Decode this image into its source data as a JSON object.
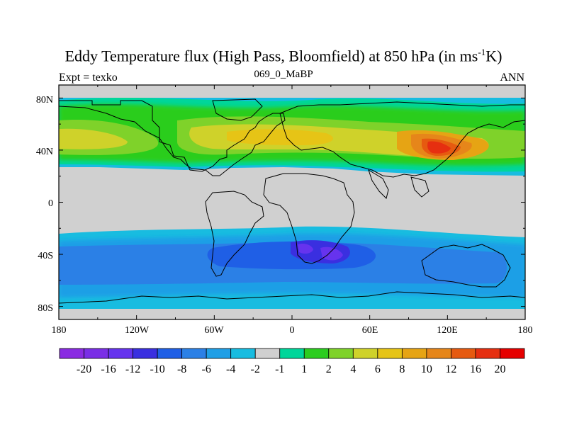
{
  "title": {
    "main": "Eddy Temperature flux (High Pass, Bloomfield) at 850 hPa (in ms",
    "sup": "-1",
    "end": "K)"
  },
  "subtitle": {
    "left": "Expt = texko",
    "center": "069_0_MaBP",
    "right": "ANN"
  },
  "map": {
    "projection": "cylindrical-equidistant",
    "lon_range": [
      -180,
      180
    ],
    "lat_range": [
      -90,
      90
    ],
    "x_ticks": [
      "180",
      "120W",
      "60W",
      "0",
      "60E",
      "120E",
      "180"
    ],
    "y_ticks": [
      "80N",
      "40N",
      "0",
      "40S",
      "80S"
    ],
    "land_mask_color": "#d0d0d0"
  },
  "colorbar": {
    "colors": [
      "#8a2be2",
      "#7a2ee6",
      "#6633ee",
      "#3a2fe0",
      "#1f5fe6",
      "#2b80e6",
      "#1f9fe6",
      "#18bce0",
      "#d0d0d0",
      "#00d69a",
      "#2ccd1f",
      "#7fd22a",
      "#cfd22a",
      "#e6c416",
      "#e6a414",
      "#e6861a",
      "#e65a10",
      "#e62f10",
      "#e60000"
    ],
    "labels": [
      "-20",
      "-16",
      "-12",
      "-10",
      "-8",
      "-6",
      "-4",
      "-2",
      "-1",
      "1",
      "2",
      "4",
      "6",
      "8",
      "10",
      "12",
      "16",
      "20"
    ]
  }
}
